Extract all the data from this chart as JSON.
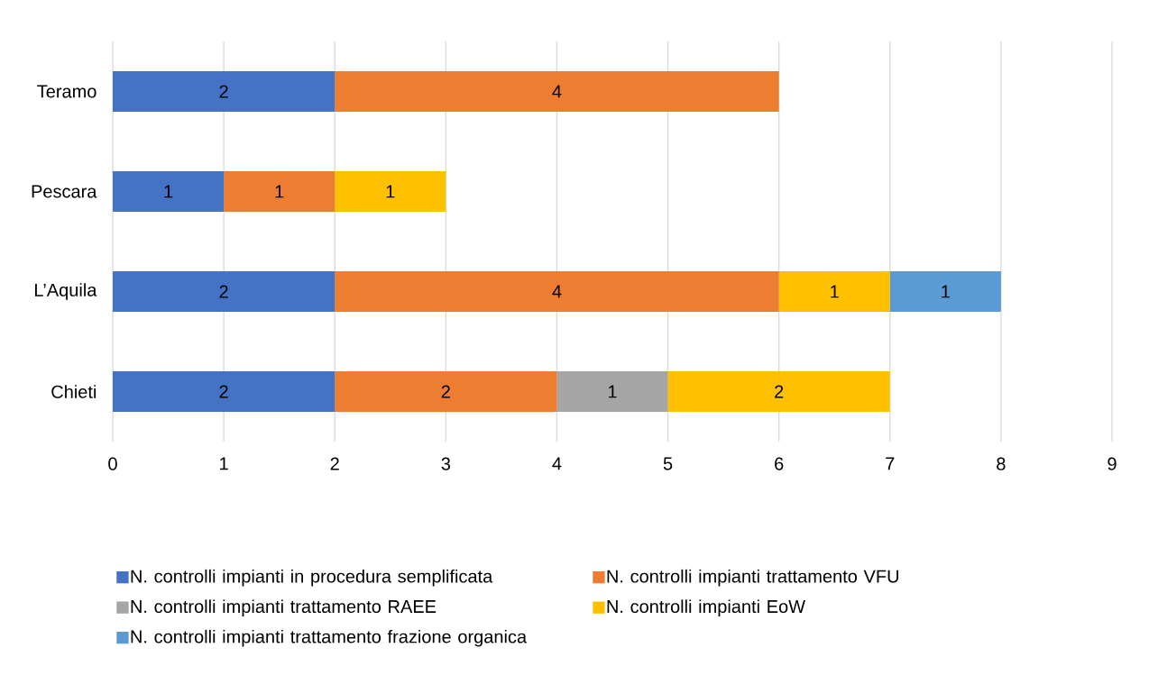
{
  "chart_data": {
    "type": "bar",
    "orientation": "horizontal",
    "stacked": true,
    "data_labels": true,
    "grid": "x",
    "legend": "bottom",
    "categories": [
      "Teramo",
      "Pescara",
      "L’Aquila",
      "Chieti"
    ],
    "series": [
      {
        "name": "N. controlli impianti in procedura semplificata",
        "color": "#4472c4",
        "values": [
          2,
          1,
          2,
          2
        ]
      },
      {
        "name": "N. controlli impianti trattamento VFU",
        "color": "#ed7d31",
        "values": [
          4,
          1,
          4,
          2
        ]
      },
      {
        "name": "N. controlli impianti trattamento RAEE",
        "color": "#a5a5a5",
        "values": [
          null,
          null,
          null,
          1
        ]
      },
      {
        "name": "N. controlli impianti EoW",
        "color": "#ffc000",
        "values": [
          null,
          1,
          1,
          2
        ]
      },
      {
        "name": "N. controlli impianti trattamento frazione organica",
        "color": "#5b9bd5",
        "values": [
          null,
          null,
          1,
          null
        ]
      }
    ],
    "xlim": [
      0,
      9
    ],
    "xticks": [
      0,
      1,
      2,
      3,
      4,
      5,
      6,
      7,
      8,
      9
    ]
  }
}
